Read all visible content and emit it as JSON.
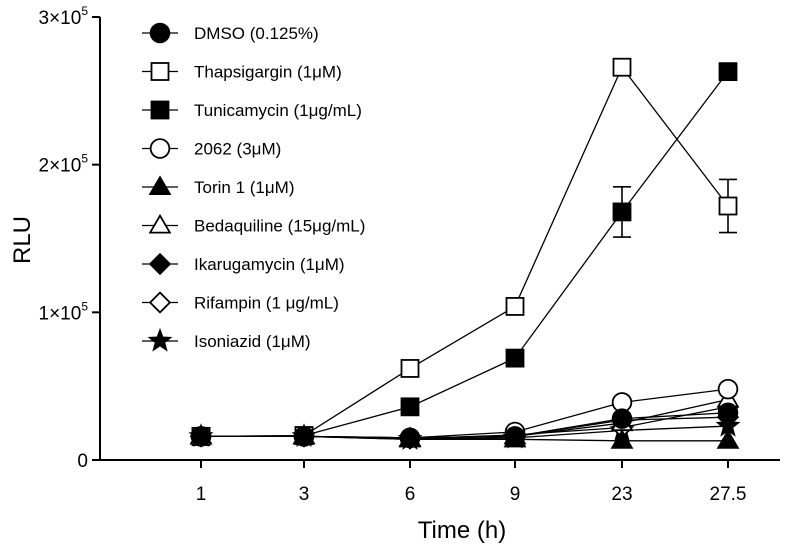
{
  "chart_data": {
    "type": "line",
    "title": "",
    "xlabel": "Time  (h)",
    "ylabel": "RLU",
    "categories": [
      "1",
      "3",
      "6",
      "9",
      "23",
      "27.5"
    ],
    "ylim": [
      0,
      300000
    ],
    "yticks": [
      {
        "value": 0,
        "mantissa": "0",
        "exponent": ""
      },
      {
        "value": 100000,
        "mantissa": "1×10",
        "exponent": "5"
      },
      {
        "value": 200000,
        "mantissa": "2×10",
        "exponent": "5"
      },
      {
        "value": 300000,
        "mantissa": "3×10",
        "exponent": "5"
      }
    ],
    "legend_position": "top-left",
    "series": [
      {
        "name": "DMSO (0.125%)",
        "marker": "circle-filled",
        "values": [
          16000,
          16000,
          15000,
          16000,
          28000,
          32000
        ],
        "errors": [
          0,
          0,
          0,
          0,
          0,
          0
        ]
      },
      {
        "name": "Thapsigargin (1μM)",
        "marker": "square-open",
        "values": [
          16000,
          16500,
          62000,
          104000,
          266000,
          172000
        ],
        "errors": [
          0,
          0,
          0,
          4000,
          0,
          18000
        ]
      },
      {
        "name": "Tunicamycin (1μg/mL)",
        "marker": "square-filled",
        "values": [
          16000,
          16500,
          36000,
          69000,
          168000,
          263000
        ],
        "errors": [
          0,
          0,
          0,
          0,
          17000,
          0
        ]
      },
      {
        "name": "2062 (3μM)",
        "marker": "circle-open",
        "values": [
          16000,
          16000,
          15000,
          19000,
          39000,
          48000
        ],
        "errors": [
          0,
          0,
          0,
          0,
          0,
          0
        ]
      },
      {
        "name": "Torin 1 (1μM)",
        "marker": "triangle-filled",
        "values": [
          16000,
          16000,
          14000,
          14000,
          13000,
          13000
        ],
        "errors": [
          0,
          0,
          0,
          0,
          0,
          0
        ]
      },
      {
        "name": "Bedaquiline (15μg/mL)",
        "marker": "triangle-open",
        "values": [
          16000,
          16000,
          14500,
          16000,
          25000,
          41000
        ],
        "errors": [
          0,
          0,
          0,
          0,
          0,
          0
        ]
      },
      {
        "name": "Ikarugamycin (1μM)",
        "marker": "diamond-filled",
        "values": [
          16000,
          16000,
          15000,
          16000,
          27000,
          29000
        ],
        "errors": [
          0,
          0,
          0,
          0,
          0,
          0
        ]
      },
      {
        "name": "Rifampin (1 μg/mL)",
        "marker": "diamond-open",
        "values": [
          16000,
          16000,
          14500,
          17000,
          22000,
          36000
        ],
        "errors": [
          0,
          0,
          0,
          0,
          0,
          0
        ]
      },
      {
        "name": "Isoniazid (1μM)",
        "marker": "star-filled",
        "values": [
          16000,
          16000,
          14000,
          15000,
          20000,
          23000
        ],
        "errors": [
          0,
          0,
          0,
          0,
          0,
          0
        ]
      }
    ]
  }
}
